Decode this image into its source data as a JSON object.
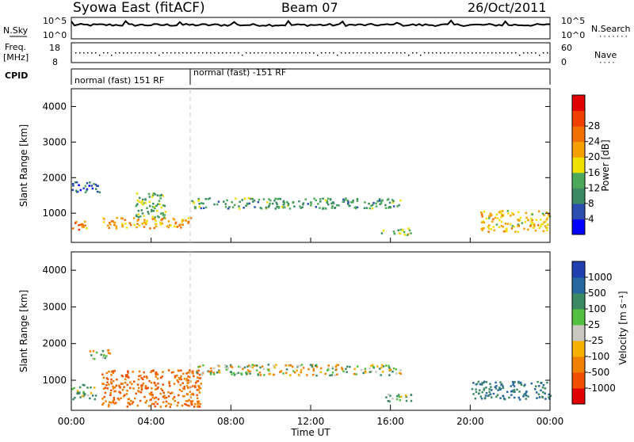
{
  "header": {
    "station": "Syowa East (fitACF)",
    "beam": "Beam 07",
    "date": "26/Oct/2011"
  },
  "top_panels": {
    "nsky_label": "N.Sky",
    "nsky_tick_top": "10^5",
    "nsky_tick_bottom": "10^0",
    "nsearch_label": "N.Search",
    "nsearch_tick_top": "10^5",
    "nsearch_tick_bottom": "10^0",
    "freq_label": "Freq.",
    "freq_unit": "[MHz]",
    "freq_tick_top": "18",
    "freq_tick_bottom": "8",
    "nave_label": "Nave",
    "nave_tick_top": "60",
    "nave_tick_bottom": "0",
    "cpid_label": "CPID",
    "cpid_mode_1": "normal (fast) 151 RF",
    "cpid_mode_2": "normal (fast) -151 RF"
  },
  "colorbars": {
    "power": {
      "label": "Power [dB]",
      "ticks": [
        "4",
        "8",
        "12",
        "16",
        "20",
        "24",
        "28"
      ],
      "colors": [
        "#0000ff",
        "#2a4fb0",
        "#3c8a64",
        "#4ca85a",
        "#f0e000",
        "#f5a000",
        "#f07000",
        "#f04000",
        "#e00000"
      ]
    },
    "velocity": {
      "label": "Velocity [m s⁻¹]",
      "ticks": [
        "1000",
        "500",
        "100",
        "25",
        "-25",
        "-100",
        "-500",
        "-1000"
      ],
      "colors": [
        "#2040b0",
        "#2868a0",
        "#3c8a64",
        "#54c040",
        "#c8c8c0",
        "#f5b000",
        "#f08000",
        "#f05000",
        "#e00000"
      ]
    }
  },
  "chart_data": [
    {
      "type": "heatmap",
      "title": "",
      "ylabel": "Slant Range [km]",
      "xlabel": "Time UT",
      "x_ticks": [
        "00:00",
        "04:00",
        "08:00",
        "12:00",
        "16:00",
        "20:00",
        "00:00"
      ],
      "y_ticks": [
        "1000",
        "2000",
        "3000",
        "4000"
      ],
      "xlim_hours": [
        0,
        24
      ],
      "ylim": [
        180,
        4500
      ],
      "colorbar": "Power [dB]",
      "regions": [
        {
          "t0": 0.0,
          "t1": 0.8,
          "r0": 550,
          "r1": 850,
          "value": 24
        },
        {
          "t0": 0.0,
          "t1": 1.5,
          "r0": 1600,
          "r1": 1900,
          "value": 8
        },
        {
          "t0": 1.5,
          "t1": 6.0,
          "r0": 600,
          "r1": 900,
          "value": 22
        },
        {
          "t0": 3.2,
          "t1": 4.8,
          "r0": 900,
          "r1": 1600,
          "value": 14
        },
        {
          "t0": 6.0,
          "t1": 16.5,
          "r0": 1150,
          "r1": 1450,
          "value": 12
        },
        {
          "t0": 15.5,
          "t1": 17.0,
          "r0": 400,
          "r1": 600,
          "value": 16
        },
        {
          "t0": 20.5,
          "t1": 24.0,
          "r0": 500,
          "r1": 1100,
          "value": 20
        }
      ]
    },
    {
      "type": "heatmap",
      "title": "",
      "ylabel": "Slant Range [km]",
      "xlabel": "Time UT",
      "x_ticks": [
        "00:00",
        "04:00",
        "08:00",
        "12:00",
        "16:00",
        "20:00",
        "00:00"
      ],
      "y_ticks": [
        "1000",
        "2000",
        "3000",
        "4000"
      ],
      "xlim_hours": [
        0,
        24
      ],
      "ylim": [
        180,
        4500
      ],
      "colorbar": "Velocity [m s⁻¹]",
      "regions": [
        {
          "t0": 0.0,
          "t1": 1.2,
          "r0": 500,
          "r1": 900,
          "value": 100
        },
        {
          "t0": 0.8,
          "t1": 2.0,
          "r0": 1600,
          "r1": 1850,
          "value": 25
        },
        {
          "t0": 1.5,
          "t1": 6.5,
          "r0": 300,
          "r1": 1300,
          "value": -500
        },
        {
          "t0": 6.0,
          "t1": 16.5,
          "r0": 1150,
          "r1": 1450,
          "value": 0
        },
        {
          "t0": 15.5,
          "t1": 17.0,
          "r0": 450,
          "r1": 650,
          "value": 100
        },
        {
          "t0": 20.0,
          "t1": 24.0,
          "r0": 500,
          "r1": 1000,
          "value": 500
        }
      ]
    }
  ]
}
